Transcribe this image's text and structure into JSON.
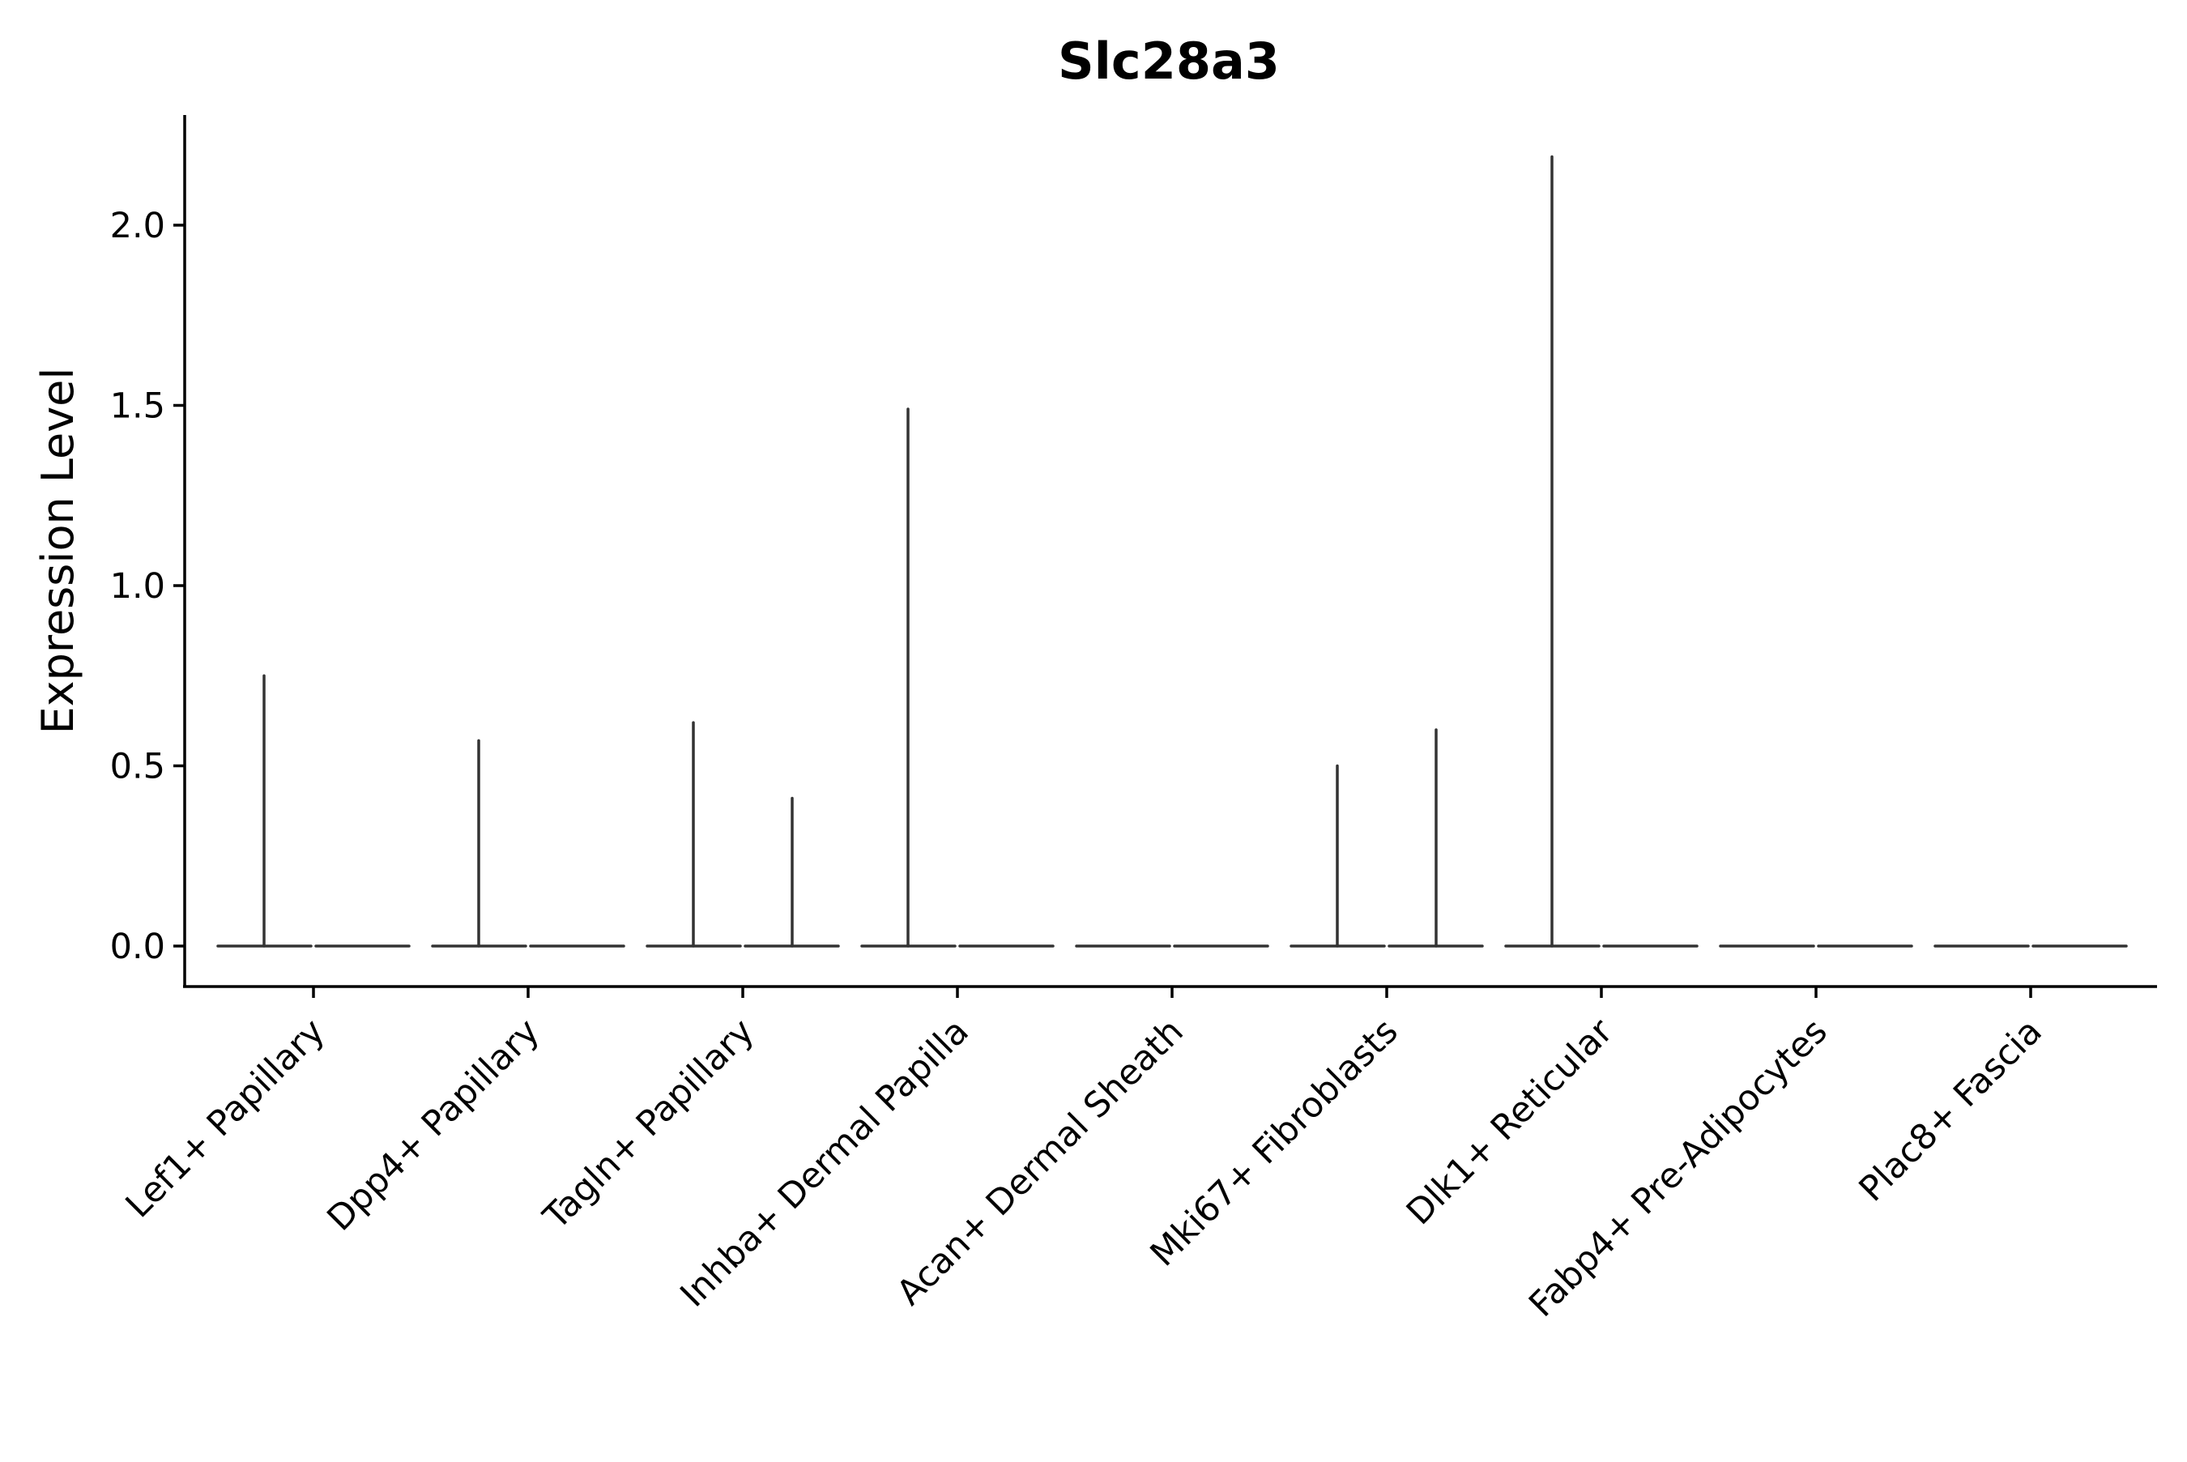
{
  "chart_data": {
    "type": "violin",
    "title": "Slc28a3",
    "xlabel": "",
    "ylabel": "Expression Level",
    "ylim": [
      -0.11,
      2.3
    ],
    "yticks": [
      0.0,
      0.5,
      1.0,
      1.5,
      2.0
    ],
    "ytick_labels": [
      "0.0",
      "0.5",
      "1.0",
      "1.5",
      "2.0"
    ],
    "categories": [
      "Lef1+ Papillary",
      "Dpp4+ Papillary",
      "Tagln+ Papillary",
      "Inhba+ Dermal Papilla",
      "Acan+ Dermal Sheath",
      "Mki67+ Fibroblasts",
      "Dlk1+ Reticular",
      "Fabp4+ Pre-Adipocytes",
      "Plac8+ Fascia"
    ],
    "series": [
      {
        "name": "1",
        "values": [
          0.75,
          0.57,
          0.62,
          1.49,
          0.0,
          0.5,
          2.19,
          0.0,
          0.0
        ]
      },
      {
        "name": "2",
        "values": [
          0.0,
          0.0,
          0.41,
          0.0,
          0.0,
          0.6,
          0.0,
          0.0,
          0.0
        ]
      }
    ],
    "grid": false,
    "legend": "none"
  }
}
